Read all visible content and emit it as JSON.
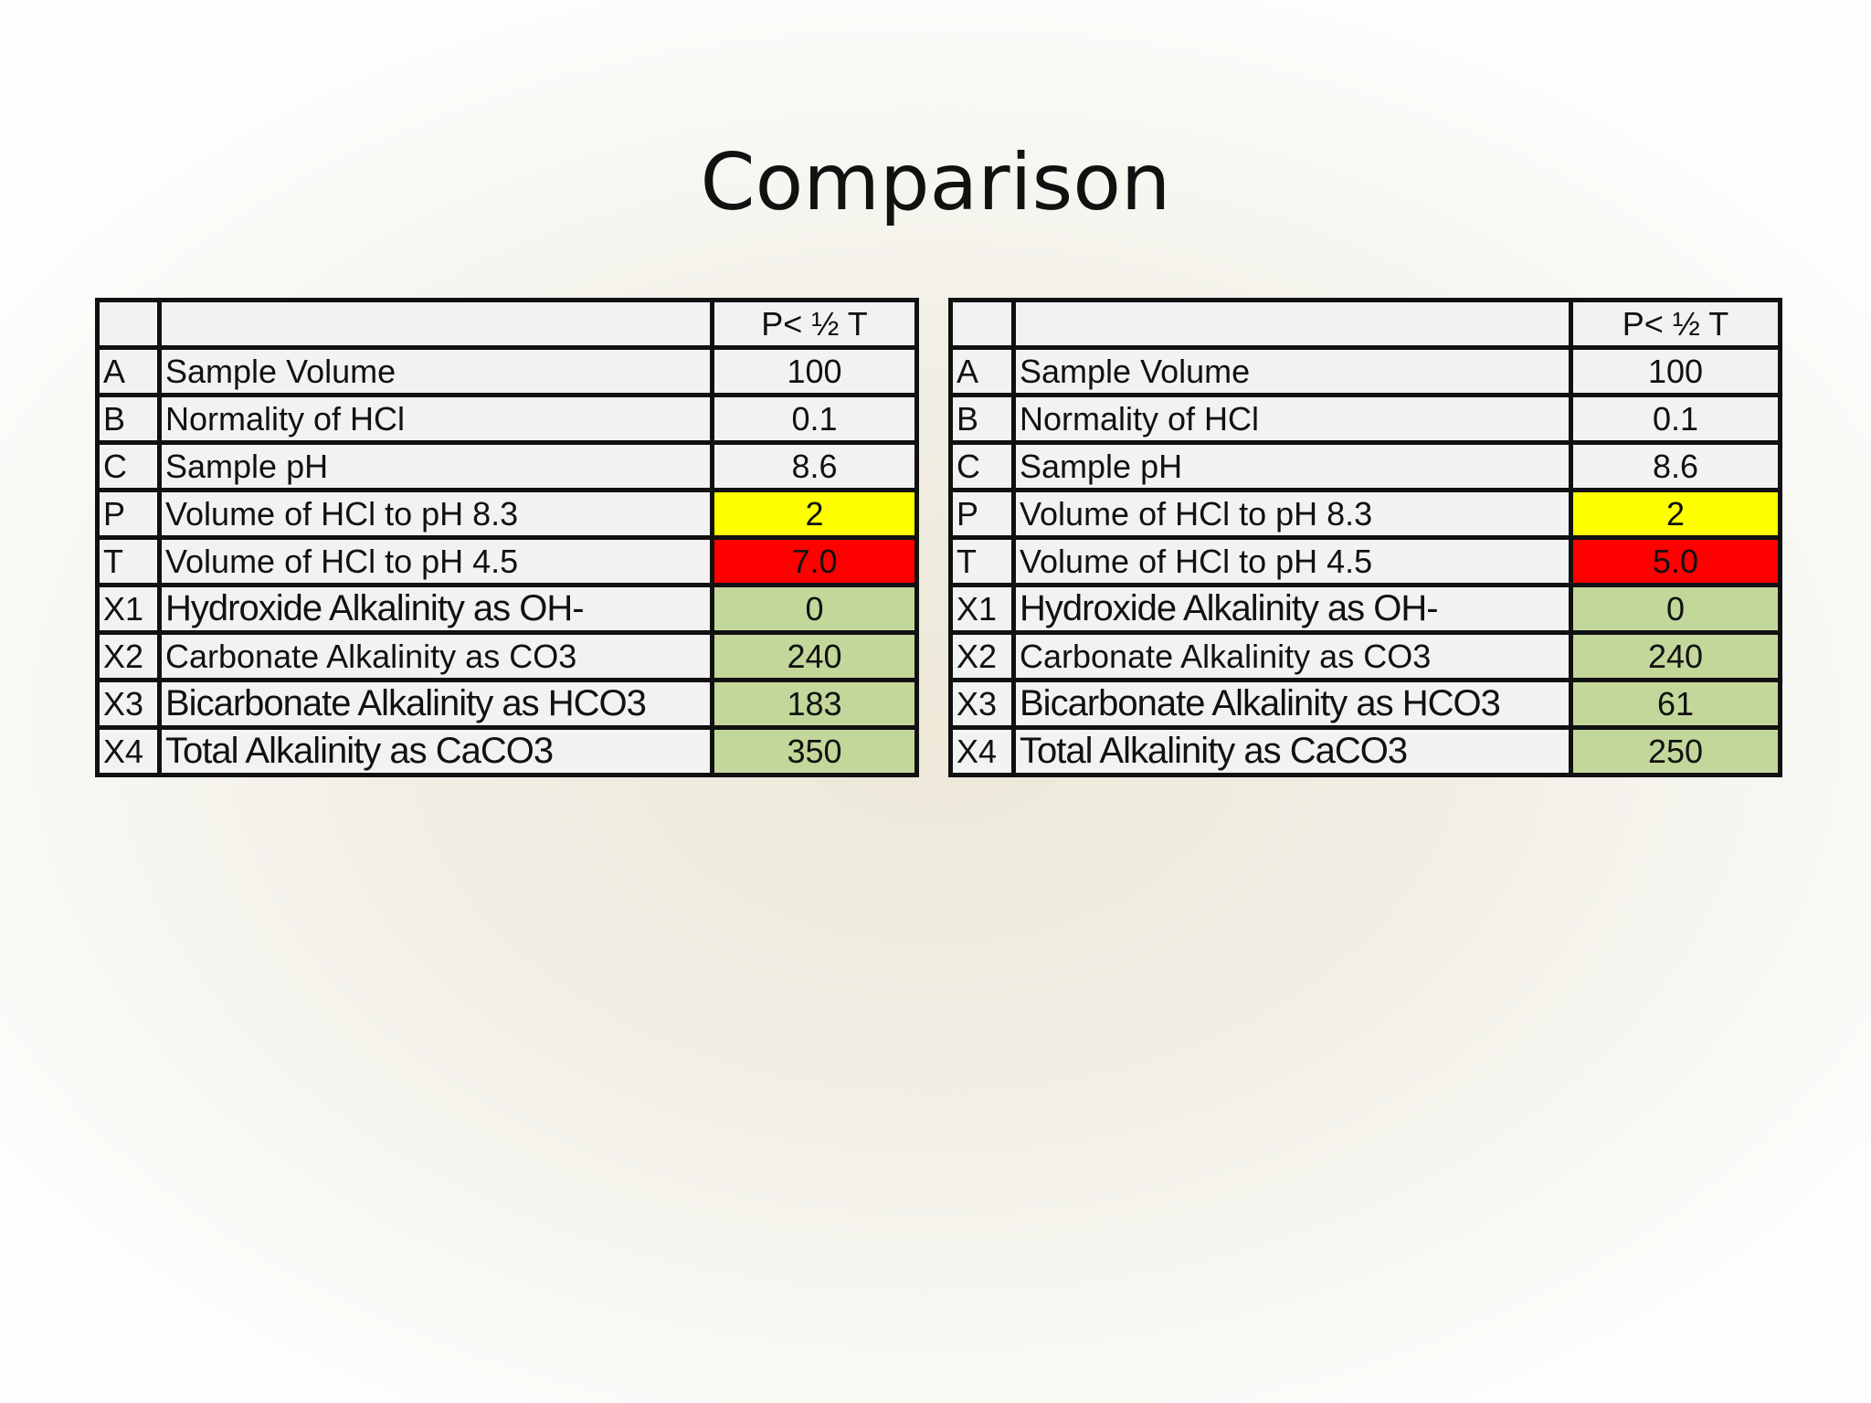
{
  "slide": {
    "title": "Comparison"
  },
  "colors": {
    "highlight_p": "#ffff00",
    "highlight_t": "#ff0000",
    "result": "#c4d79b"
  },
  "tables": [
    {
      "header": "P< ½ T",
      "rows": [
        {
          "letter": "A",
          "label": "Sample Volume",
          "value": "100"
        },
        {
          "letter": "B",
          "label": "Normality of HCl",
          "value": "0.1"
        },
        {
          "letter": "C",
          "label": "Sample pH",
          "value": "8.6"
        },
        {
          "letter": "P",
          "label": "Volume of HCl to pH 8.3",
          "value": "2"
        },
        {
          "letter": "T",
          "label": "Volume of HCl to pH 4.5",
          "value": "7.0"
        },
        {
          "letter": "X1",
          "label": "Hydroxide Alkalinity as OH-",
          "value": "0"
        },
        {
          "letter": "X2",
          "label": "Carbonate  Alkalinity as CO3",
          "value": "240"
        },
        {
          "letter": "X3",
          "label": "Bicarbonate  Alkalinity as HCO3",
          "value": "183"
        },
        {
          "letter": "X4",
          "label": "Total Alkalinity as CaCO3",
          "value": "350"
        }
      ]
    },
    {
      "header": "P< ½ T",
      "rows": [
        {
          "letter": "A",
          "label": "Sample Volume",
          "value": "100"
        },
        {
          "letter": "B",
          "label": "Normality of HCl",
          "value": "0.1"
        },
        {
          "letter": "C",
          "label": "Sample pH",
          "value": "8.6"
        },
        {
          "letter": "P",
          "label": "Volume of HCl to pH 8.3",
          "value": "2"
        },
        {
          "letter": "T",
          "label": "Volume of HCl to pH 4.5",
          "value": "5.0"
        },
        {
          "letter": "X1",
          "label": "Hydroxide Alkalinity as OH-",
          "value": "0"
        },
        {
          "letter": "X2",
          "label": "Carbonate  Alkalinity as CO3",
          "value": "240"
        },
        {
          "letter": "X3",
          "label": "Bicarbonate  Alkalinity as HCO3",
          "value": "61"
        },
        {
          "letter": "X4",
          "label": "Total Alkalinity as CaCO3",
          "value": "250"
        }
      ]
    }
  ]
}
